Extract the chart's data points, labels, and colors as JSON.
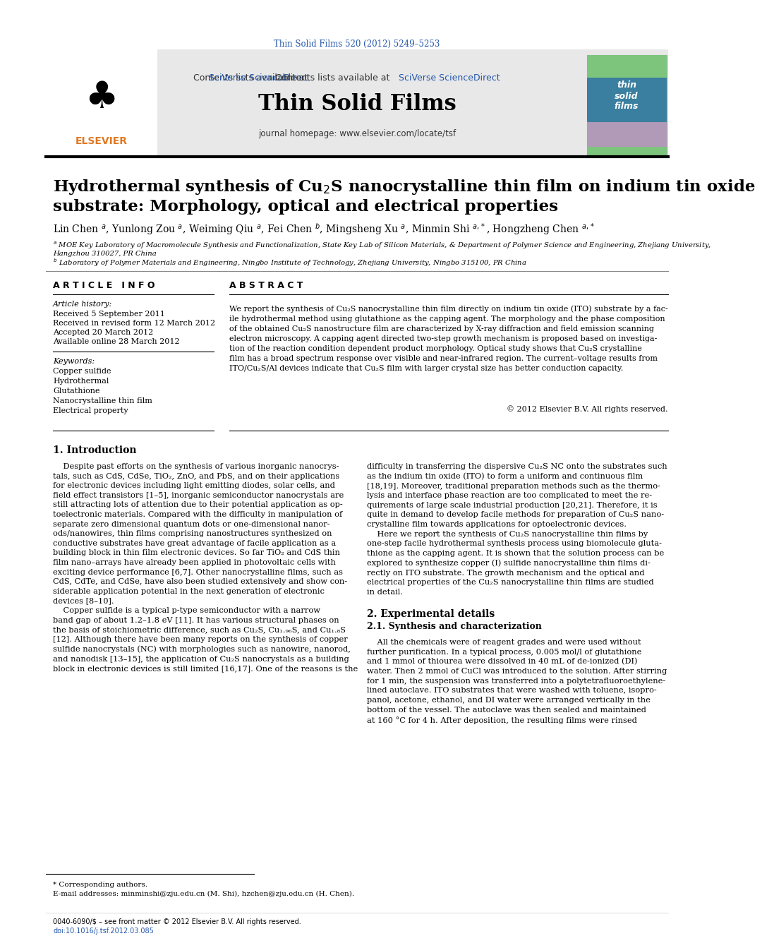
{
  "journal_ref": "Thin Solid Films 520 (2012) 5249–5253",
  "journal_name": "Thin Solid Films",
  "contents_line": "Contents lists available at ",
  "sciverse_text": "SciVerse ScienceDirect",
  "journal_homepage": "journal homepage: www.elsevier.com/locate/tsf",
  "title_line1": "Hydrothermal synthesis of Cu$_2$S nanocrystalline thin film on indium tin oxide",
  "title_line2": "substrate: Morphology, optical and electrical properties",
  "article_info_title": "A R T I C L E   I N F O",
  "abstract_title": "A B S T R A C T",
  "article_history_title": "Article history:",
  "received1": "Received 5 September 2011",
  "received2": "Received in revised form 12 March 2012",
  "accepted": "Accepted 20 March 2012",
  "available": "Available online 28 March 2012",
  "keywords_title": "Keywords:",
  "keywords": [
    "Copper sulfide",
    "Hydrothermal",
    "Glutathione",
    "Nanocrystalline thin film",
    "Electrical property"
  ],
  "copyright": "© 2012 Elsevier B.V. All rights reserved.",
  "intro_title": "1. Introduction",
  "exp_title": "2. Experimental details",
  "exp_sub": "2.1. Synthesis and characterization",
  "footnote1": "* Corresponding authors.",
  "footnote2": "E-mail addresses: minminshi@zju.edu.cn (M. Shi), hzchen@zju.edu.cn (H. Chen).",
  "footer1": "0040-6090/$ – see front matter © 2012 Elsevier B.V. All rights reserved.",
  "footer2": "doi:10.1016/j.tsf.2012.03.085",
  "bg_color": "#ffffff",
  "light_gray": "#e8e8e8",
  "blue_color": "#2255aa",
  "orange_color": "#e07820",
  "gray_color": "#888888"
}
